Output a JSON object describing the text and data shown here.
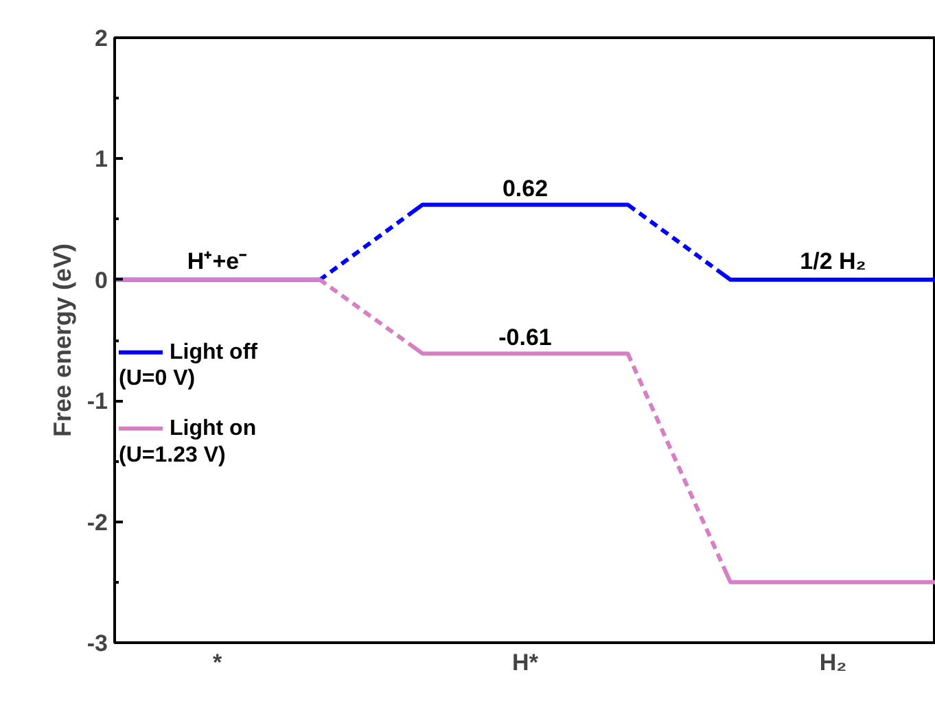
{
  "chart_data": {
    "type": "line",
    "ylabel": "Free energy (eV)",
    "categories": [
      null,
      "*",
      null,
      null,
      "H*",
      null,
      null,
      "H₂",
      null
    ],
    "ylim": [
      -3,
      2
    ],
    "yticks": [
      -3,
      -2,
      -1,
      0,
      1,
      2
    ],
    "legend": "left",
    "grid": false,
    "line_style": "dashed",
    "series": [
      {
        "name": "Light off\n(U=0 V)",
        "color": "#0000ff",
        "values": [
          0,
          0,
          0,
          0.62,
          0.62,
          0.62,
          0,
          0,
          0
        ],
        "value_labels": [
          null,
          null,
          null,
          null,
          "0.62",
          null,
          null,
          null,
          null
        ]
      },
      {
        "name": "Light on\n(U=1.23 V)",
        "color": "#d67fc4",
        "values": [
          0,
          0,
          0,
          -0.61,
          -0.61,
          -0.61,
          -2.5,
          -2.5,
          -2.5
        ],
        "value_labels": [
          null,
          null,
          null,
          null,
          "-0.61",
          null,
          null,
          null,
          null
        ]
      }
    ],
    "annotations": [
      {
        "text": "H⁺+e⁻",
        "x": "*",
        "y": 0
      },
      {
        "text": "1/2 H₂",
        "x": "H₂",
        "y": 0
      }
    ]
  }
}
